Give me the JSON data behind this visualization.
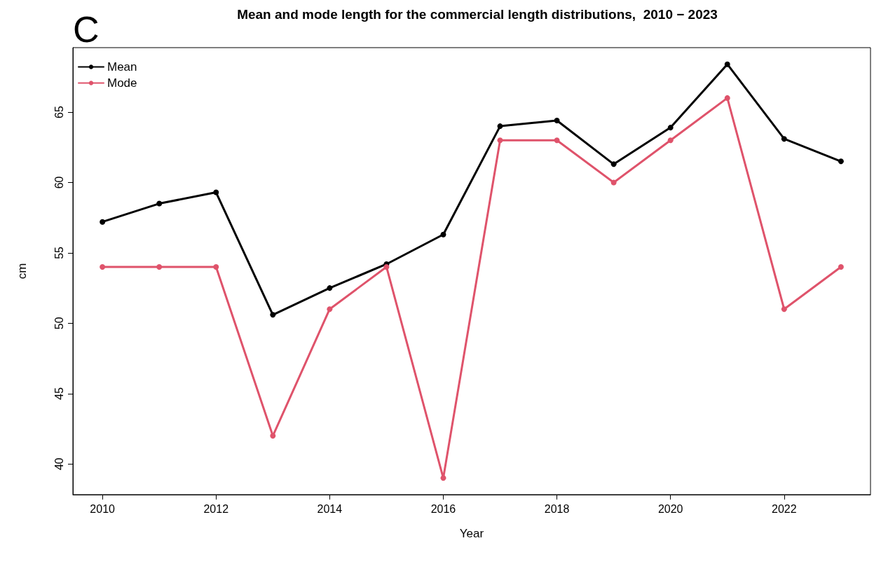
{
  "chart_data": {
    "type": "line",
    "title": "Mean and mode length for the commercial length distributions,  2010 − 2023",
    "xlabel": "Year",
    "ylabel": "cm",
    "annotations": [
      "C"
    ],
    "x": [
      2010,
      2011,
      2012,
      2013,
      2014,
      2015,
      2016,
      2017,
      2018,
      2019,
      2020,
      2021,
      2022,
      2023
    ],
    "series": [
      {
        "name": "Mean",
        "color": "#000000",
        "values": [
          57.2,
          58.5,
          59.3,
          50.6,
          52.5,
          54.2,
          56.3,
          64.0,
          64.4,
          61.3,
          63.9,
          68.4,
          63.1,
          61.5
        ]
      },
      {
        "name": "Mode",
        "color": "#df536b",
        "values": [
          54,
          54,
          54,
          42,
          51,
          54,
          39,
          63,
          63,
          60,
          63,
          66,
          51,
          54
        ]
      }
    ],
    "xlim": [
      2009.48,
      2023.52
    ],
    "xticks": [
      2010,
      2012,
      2014,
      2016,
      2018,
      2020,
      2022
    ],
    "ylim": [
      37.82,
      69.58
    ],
    "yticks": [
      40,
      45,
      50,
      55,
      60,
      65
    ],
    "grid": false,
    "legend": "top left",
    "marker": "circle",
    "line_style": "solid"
  }
}
